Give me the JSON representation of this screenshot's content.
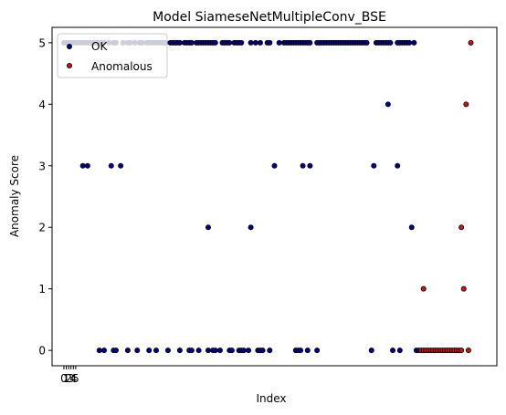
{
  "chart_data": {
    "type": "scatter",
    "title": "Model SiameseNetMultipleConv_BSE",
    "xlabel": "Index",
    "ylabel": "Anomaly Score",
    "xlim": [
      -5,
      183
    ],
    "ylim": [
      -0.25,
      5.25
    ],
    "x_ticks": [
      0,
      1,
      2,
      3,
      4,
      5
    ],
    "x_tick_labels": [
      "0",
      "1",
      "2",
      "3",
      "4",
      "5"
    ],
    "y_ticks": [
      0,
      1,
      2,
      3,
      4,
      5
    ],
    "grid": false,
    "legend_position": "top-left",
    "series": [
      {
        "name": "OK",
        "color": "#00008b",
        "points": [
          [
            0,
            5
          ],
          [
            1,
            5
          ],
          [
            2,
            5
          ],
          [
            3,
            5
          ],
          [
            4,
            5
          ],
          [
            5,
            5
          ],
          [
            6,
            5
          ],
          [
            7,
            5
          ],
          [
            8,
            5
          ],
          [
            9,
            5
          ],
          [
            10,
            5
          ],
          [
            11,
            5
          ],
          [
            12,
            5
          ],
          [
            13,
            5
          ],
          [
            14,
            5
          ],
          [
            15,
            5
          ],
          [
            16,
            5
          ],
          [
            17,
            5
          ],
          [
            19,
            5
          ],
          [
            21,
            5
          ],
          [
            22,
            5
          ],
          [
            25,
            5
          ],
          [
            27,
            5
          ],
          [
            28,
            5
          ],
          [
            30,
            5
          ],
          [
            32,
            5
          ],
          [
            33,
            5
          ],
          [
            35,
            5
          ],
          [
            36,
            5
          ],
          [
            37,
            5
          ],
          [
            38,
            5
          ],
          [
            39,
            5
          ],
          [
            40,
            5
          ],
          [
            41,
            5
          ],
          [
            42,
            5
          ],
          [
            43,
            5
          ],
          [
            45,
            5
          ],
          [
            46,
            5
          ],
          [
            47,
            5
          ],
          [
            48,
            5
          ],
          [
            49,
            5
          ],
          [
            51,
            5
          ],
          [
            52,
            5
          ],
          [
            53,
            5
          ],
          [
            54,
            5
          ],
          [
            56,
            5
          ],
          [
            57,
            5
          ],
          [
            58,
            5
          ],
          [
            59,
            5
          ],
          [
            60,
            5
          ],
          [
            61,
            5
          ],
          [
            62,
            5
          ],
          [
            63,
            5
          ],
          [
            64,
            5
          ],
          [
            67,
            5
          ],
          [
            68,
            5
          ],
          [
            69,
            5
          ],
          [
            70,
            5
          ],
          [
            72,
            5
          ],
          [
            73,
            5
          ],
          [
            74,
            5
          ],
          [
            75,
            5
          ],
          [
            79,
            5
          ],
          [
            81,
            5
          ],
          [
            83,
            5
          ],
          [
            86,
            5
          ],
          [
            87,
            5
          ],
          [
            91,
            5
          ],
          [
            93,
            5
          ],
          [
            94,
            5
          ],
          [
            95,
            5
          ],
          [
            96,
            5
          ],
          [
            97,
            5
          ],
          [
            98,
            5
          ],
          [
            99,
            5
          ],
          [
            100,
            5
          ],
          [
            101,
            5
          ],
          [
            102,
            5
          ],
          [
            103,
            5
          ],
          [
            104,
            5
          ],
          [
            107,
            5
          ],
          [
            108,
            5
          ],
          [
            109,
            5
          ],
          [
            110,
            5
          ],
          [
            111,
            5
          ],
          [
            112,
            5
          ],
          [
            113,
            5
          ],
          [
            114,
            5
          ],
          [
            115,
            5
          ],
          [
            116,
            5
          ],
          [
            117,
            5
          ],
          [
            118,
            5
          ],
          [
            119,
            5
          ],
          [
            120,
            5
          ],
          [
            121,
            5
          ],
          [
            122,
            5
          ],
          [
            123,
            5
          ],
          [
            124,
            5
          ],
          [
            125,
            5
          ],
          [
            126,
            5
          ],
          [
            127,
            5
          ],
          [
            128,
            5
          ],
          [
            132,
            5
          ],
          [
            133,
            5
          ],
          [
            134,
            5
          ],
          [
            135,
            5
          ],
          [
            136,
            5
          ],
          [
            137,
            5
          ],
          [
            138,
            5
          ],
          [
            141,
            5
          ],
          [
            142,
            5
          ],
          [
            143,
            5
          ],
          [
            144,
            5
          ],
          [
            145,
            5
          ],
          [
            146,
            5
          ],
          [
            148,
            5
          ],
          [
            137,
            4
          ],
          [
            8,
            3
          ],
          [
            10,
            3
          ],
          [
            20,
            3
          ],
          [
            24,
            3
          ],
          [
            89,
            3
          ],
          [
            101,
            3
          ],
          [
            104,
            3
          ],
          [
            131,
            3
          ],
          [
            141,
            3
          ],
          [
            61,
            2
          ],
          [
            79,
            2
          ],
          [
            147,
            2
          ],
          [
            15,
            0
          ],
          [
            17,
            0
          ],
          [
            21,
            0
          ],
          [
            22,
            0
          ],
          [
            27,
            0
          ],
          [
            31,
            0
          ],
          [
            36,
            0
          ],
          [
            39,
            0
          ],
          [
            44,
            0
          ],
          [
            49,
            0
          ],
          [
            53,
            0
          ],
          [
            54,
            0
          ],
          [
            57,
            0
          ],
          [
            61,
            0
          ],
          [
            63,
            0
          ],
          [
            64,
            0
          ],
          [
            66,
            0
          ],
          [
            70,
            0
          ],
          [
            71,
            0
          ],
          [
            74,
            0
          ],
          [
            75,
            0
          ],
          [
            76,
            0
          ],
          [
            78,
            0
          ],
          [
            82,
            0
          ],
          [
            83,
            0
          ],
          [
            84,
            0
          ],
          [
            87,
            0
          ],
          [
            98,
            0
          ],
          [
            99,
            0
          ],
          [
            100,
            0
          ],
          [
            103,
            0
          ],
          [
            107,
            0
          ],
          [
            130,
            0
          ],
          [
            139,
            0
          ],
          [
            142,
            0
          ],
          [
            149,
            0
          ],
          [
            150,
            0
          ]
        ]
      },
      {
        "name": "Anomalous",
        "color": "#c81414",
        "points": [
          [
            151,
            0
          ],
          [
            152,
            0
          ],
          [
            153,
            0
          ],
          [
            154,
            0
          ],
          [
            155,
            0
          ],
          [
            156,
            0
          ],
          [
            157,
            0
          ],
          [
            158,
            0
          ],
          [
            159,
            0
          ],
          [
            160,
            0
          ],
          [
            161,
            0
          ],
          [
            162,
            0
          ],
          [
            163,
            0
          ],
          [
            164,
            0
          ],
          [
            165,
            0
          ],
          [
            166,
            0
          ],
          [
            167,
            0
          ],
          [
            168,
            0
          ],
          [
            171,
            0
          ],
          [
            152,
            1
          ],
          [
            169,
            1
          ],
          [
            168,
            2
          ],
          [
            170,
            4
          ],
          [
            172,
            5
          ]
        ]
      }
    ]
  }
}
